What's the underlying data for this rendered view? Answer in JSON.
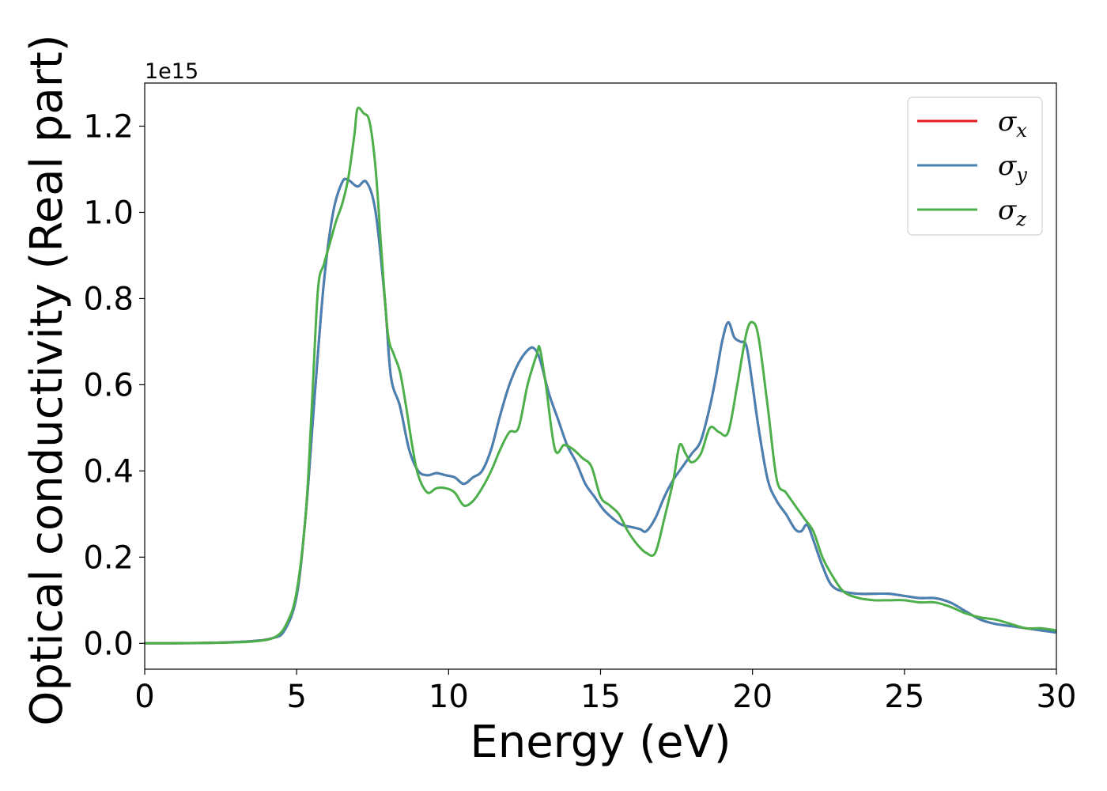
{
  "chart_data": {
    "type": "line",
    "xlabel": "Energy (eV)",
    "ylabel": "Optical conductivity (Real part)",
    "y_offset_label": "1e15",
    "xlim": [
      0,
      30
    ],
    "ylim": [
      -0.06,
      1.3
    ],
    "xticks": [
      0,
      5,
      10,
      15,
      20,
      25,
      30
    ],
    "yticks": [
      0.0,
      0.2,
      0.4,
      0.6,
      0.8,
      1.0,
      1.2
    ],
    "grid": false,
    "legend_position": "top-right",
    "series": [
      {
        "name": "σx",
        "base": "σ",
        "sub": "x",
        "color": "#e41a1c",
        "x": [
          0,
          2,
          3.5,
          4.2,
          4.6,
          5.0,
          5.3,
          5.6,
          5.9,
          6.2,
          6.5,
          6.7,
          7.0,
          7.3,
          7.6,
          7.9,
          8.1,
          8.4,
          8.7,
          9.0,
          9.3,
          9.6,
          9.9,
          10.2,
          10.5,
          10.8,
          11.1,
          11.4,
          11.7,
          12.0,
          12.3,
          12.6,
          12.8,
          13.0,
          13.3,
          13.6,
          13.9,
          14.2,
          14.5,
          14.8,
          15.1,
          15.4,
          15.7,
          16.0,
          16.3,
          16.5,
          16.8,
          17.1,
          17.4,
          17.7,
          18.0,
          18.3,
          18.6,
          18.8,
          19.0,
          19.2,
          19.4,
          19.6,
          19.8,
          20.0,
          20.2,
          20.5,
          20.8,
          21.1,
          21.4,
          21.6,
          21.8,
          22.0,
          22.3,
          22.6,
          23.0,
          23.5,
          24.0,
          24.5,
          25.0,
          25.5,
          26.0,
          26.5,
          27.0,
          27.5,
          28.0,
          28.5,
          29.0,
          29.5,
          30.0
        ],
        "y": [
          0.0,
          0.001,
          0.005,
          0.012,
          0.03,
          0.11,
          0.3,
          0.58,
          0.84,
          1.0,
          1.07,
          1.075,
          1.06,
          1.07,
          1.0,
          0.8,
          0.62,
          0.55,
          0.45,
          0.4,
          0.39,
          0.395,
          0.39,
          0.385,
          0.37,
          0.385,
          0.4,
          0.45,
          0.53,
          0.6,
          0.65,
          0.68,
          0.685,
          0.66,
          0.58,
          0.52,
          0.46,
          0.42,
          0.37,
          0.34,
          0.31,
          0.29,
          0.275,
          0.27,
          0.265,
          0.26,
          0.29,
          0.34,
          0.38,
          0.41,
          0.44,
          0.47,
          0.55,
          0.62,
          0.7,
          0.745,
          0.71,
          0.7,
          0.69,
          0.6,
          0.5,
          0.38,
          0.33,
          0.3,
          0.265,
          0.26,
          0.275,
          0.24,
          0.18,
          0.135,
          0.12,
          0.115,
          0.115,
          0.115,
          0.11,
          0.105,
          0.105,
          0.095,
          0.075,
          0.055,
          0.045,
          0.04,
          0.035,
          0.03,
          0.025
        ]
      },
      {
        "name": "σy",
        "base": "σ",
        "sub": "y",
        "color": "#4682b4",
        "x": [
          0,
          2,
          3.5,
          4.2,
          4.6,
          5.0,
          5.3,
          5.6,
          5.9,
          6.2,
          6.5,
          6.7,
          7.0,
          7.3,
          7.6,
          7.9,
          8.1,
          8.4,
          8.7,
          9.0,
          9.3,
          9.6,
          9.9,
          10.2,
          10.5,
          10.8,
          11.1,
          11.4,
          11.7,
          12.0,
          12.3,
          12.6,
          12.8,
          13.0,
          13.3,
          13.6,
          13.9,
          14.2,
          14.5,
          14.8,
          15.1,
          15.4,
          15.7,
          16.0,
          16.3,
          16.5,
          16.8,
          17.1,
          17.4,
          17.7,
          18.0,
          18.3,
          18.6,
          18.8,
          19.0,
          19.2,
          19.4,
          19.6,
          19.8,
          20.0,
          20.2,
          20.5,
          20.8,
          21.1,
          21.4,
          21.6,
          21.8,
          22.0,
          22.3,
          22.6,
          23.0,
          23.5,
          24.0,
          24.5,
          25.0,
          25.5,
          26.0,
          26.5,
          27.0,
          27.5,
          28.0,
          28.5,
          29.0,
          29.5,
          30.0
        ],
        "y": [
          0.0,
          0.001,
          0.005,
          0.012,
          0.03,
          0.11,
          0.3,
          0.58,
          0.84,
          1.0,
          1.07,
          1.075,
          1.06,
          1.07,
          1.0,
          0.8,
          0.62,
          0.55,
          0.45,
          0.4,
          0.39,
          0.395,
          0.39,
          0.385,
          0.37,
          0.385,
          0.4,
          0.45,
          0.53,
          0.6,
          0.65,
          0.68,
          0.685,
          0.66,
          0.58,
          0.52,
          0.46,
          0.42,
          0.37,
          0.34,
          0.31,
          0.29,
          0.275,
          0.27,
          0.265,
          0.26,
          0.29,
          0.34,
          0.38,
          0.41,
          0.44,
          0.47,
          0.55,
          0.62,
          0.7,
          0.745,
          0.71,
          0.7,
          0.69,
          0.6,
          0.5,
          0.38,
          0.33,
          0.3,
          0.265,
          0.26,
          0.275,
          0.24,
          0.18,
          0.135,
          0.12,
          0.115,
          0.115,
          0.115,
          0.11,
          0.105,
          0.105,
          0.095,
          0.075,
          0.055,
          0.045,
          0.04,
          0.035,
          0.03,
          0.025
        ]
      },
      {
        "name": "σz",
        "base": "σ",
        "sub": "z",
        "color": "#4daf4a",
        "x": [
          0,
          2,
          3.5,
          4.3,
          4.7,
          5.0,
          5.3,
          5.5,
          5.7,
          5.9,
          6.1,
          6.3,
          6.5,
          6.7,
          6.9,
          7.0,
          7.2,
          7.4,
          7.6,
          7.8,
          8.0,
          8.2,
          8.4,
          8.6,
          8.8,
          9.0,
          9.3,
          9.6,
          9.9,
          10.2,
          10.5,
          10.8,
          11.1,
          11.4,
          11.7,
          12.0,
          12.3,
          12.6,
          12.9,
          13.0,
          13.2,
          13.5,
          13.8,
          14.1,
          14.4,
          14.7,
          15.0,
          15.3,
          15.6,
          15.9,
          16.2,
          16.5,
          16.8,
          17.1,
          17.4,
          17.6,
          17.8,
          18.0,
          18.3,
          18.6,
          18.9,
          19.2,
          19.5,
          19.8,
          20.0,
          20.2,
          20.5,
          20.8,
          21.1,
          21.4,
          21.7,
          22.0,
          22.3,
          22.6,
          23.0,
          23.5,
          24.0,
          24.5,
          25.0,
          25.5,
          26.0,
          26.5,
          27.0,
          27.5,
          28.0,
          28.5,
          29.0,
          29.5,
          30.0
        ],
        "y": [
          0.0,
          0.001,
          0.004,
          0.015,
          0.05,
          0.12,
          0.3,
          0.55,
          0.82,
          0.88,
          0.93,
          0.98,
          1.02,
          1.08,
          1.18,
          1.24,
          1.23,
          1.21,
          1.1,
          0.9,
          0.72,
          0.67,
          0.63,
          0.55,
          0.46,
          0.39,
          0.35,
          0.36,
          0.36,
          0.35,
          0.32,
          0.33,
          0.36,
          0.4,
          0.45,
          0.49,
          0.5,
          0.6,
          0.67,
          0.685,
          0.6,
          0.45,
          0.46,
          0.45,
          0.43,
          0.41,
          0.34,
          0.32,
          0.3,
          0.26,
          0.23,
          0.21,
          0.21,
          0.29,
          0.38,
          0.46,
          0.44,
          0.42,
          0.44,
          0.5,
          0.49,
          0.49,
          0.6,
          0.72,
          0.745,
          0.71,
          0.55,
          0.38,
          0.35,
          0.32,
          0.29,
          0.26,
          0.2,
          0.16,
          0.12,
          0.105,
          0.1,
          0.1,
          0.1,
          0.095,
          0.095,
          0.085,
          0.07,
          0.06,
          0.055,
          0.045,
          0.035,
          0.035,
          0.03
        ]
      }
    ]
  }
}
